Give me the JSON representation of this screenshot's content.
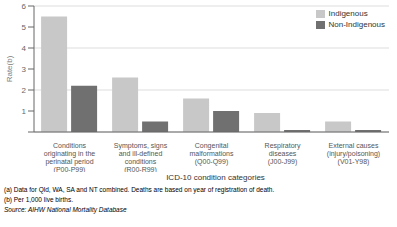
{
  "chart_data": {
    "type": "bar",
    "categories": [
      "Conditions\noriginating in the\nperinatal period\n(P00-P99)",
      "Symptoms, signs\nand ill-defined\nconditions\n(R00-R99)",
      "Congenital\nmalformations\n(Q00-Q99)",
      "Respiratory\ndiseases\n(J00-J99)",
      "External causes\n(injury/poisoning)\n(V01-Y98)"
    ],
    "series": [
      {
        "name": "Indigenous",
        "color": "#c8c8c8",
        "values": [
          5.5,
          2.6,
          1.6,
          0.9,
          0.5
        ]
      },
      {
        "name": "Non-Indigenous",
        "color": "#707070",
        "values": [
          2.2,
          0.5,
          1.0,
          0.1,
          0.1
        ]
      }
    ],
    "ylabel": "Rate(b)",
    "xlabel": "ICD-10 condition categories",
    "ylim": [
      0,
      6
    ],
    "yticks": [
      {
        "value": 0,
        "label": ""
      },
      1,
      2,
      3,
      4,
      5,
      6
    ],
    "grid": true,
    "legend": "upper right",
    "annotations": [
      "(a) Data for Qld, WA, SA and NT combined.  Deaths are based on year of registration of death.",
      "(b) Per 1,000 live births.",
      "Source: AIHW National Mortality Database"
    ]
  }
}
